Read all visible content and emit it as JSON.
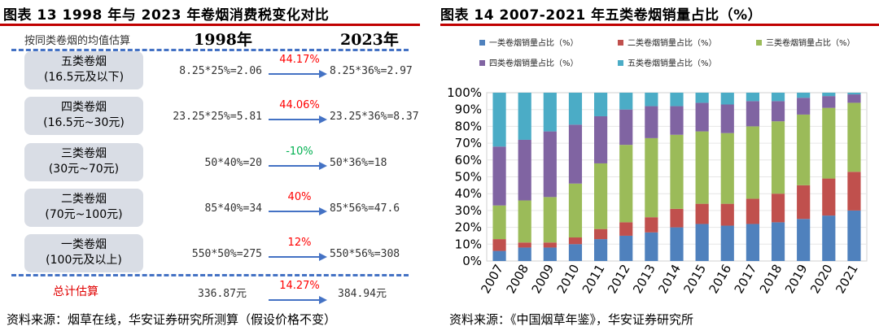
{
  "left": {
    "title": "图表 13 1998 年与 2023 年卷烟消费税变化对比",
    "header": {
      "label": "按同类卷烟的均值估算",
      "year1": "1998年",
      "year2": "2023年"
    },
    "rows": [
      {
        "cat_line1": "五类卷烟",
        "cat_line2": "(16.5元及以下)",
        "calc1998": "8.25*25%=2.06",
        "change": "44.17%",
        "change_color": "#ff0000",
        "calc2023": "8.25*36%=2.97"
      },
      {
        "cat_line1": "四类卷烟",
        "cat_line2": "(16.5元~30元)",
        "calc1998": "23.25*25%=5.81",
        "change": "44.06%",
        "change_color": "#ff0000",
        "calc2023": "23.25*36%=8.37"
      },
      {
        "cat_line1": "三类卷烟",
        "cat_line2": "(30元~70元)",
        "calc1998": "50*40%=20",
        "change": "-10%",
        "change_color": "#00b050",
        "calc2023": "50*36%=18"
      },
      {
        "cat_line1": "二类卷烟",
        "cat_line2": "(70元~100元)",
        "calc1998": "85*40%=34",
        "change": "40%",
        "change_color": "#ff0000",
        "calc2023": "85*56%=47.6"
      },
      {
        "cat_line1": "一类卷烟",
        "cat_line2": "(100元及以上)",
        "calc1998": "550*50%=275",
        "change": "12%",
        "change_color": "#ff0000",
        "calc2023": "550*56%=308"
      }
    ],
    "total": {
      "label": "总计估算",
      "calc1998": "336.87元",
      "change": "14.27%",
      "calc2023": "384.94元"
    },
    "source": "资料来源：烟草在线，华安证券研究所测算（假设价格不变）"
  },
  "chart_data": {
    "type": "bar",
    "stacked": true,
    "title": "图表 14 2007-2021 年五类卷烟销量占比（%）",
    "categories": [
      "2007",
      "2008",
      "2009",
      "2010",
      "2011",
      "2012",
      "2013",
      "2014",
      "2015",
      "2016",
      "2017",
      "2018",
      "2019",
      "2020",
      "2021"
    ],
    "y_ticks": [
      "0%",
      "10%",
      "20%",
      "30%",
      "40%",
      "50%",
      "60%",
      "70%",
      "80%",
      "90%",
      "100%"
    ],
    "ylim": [
      0,
      100
    ],
    "legend_position": "top",
    "series": [
      {
        "name": "一类卷烟销量占比（%）",
        "color": "#4f81bd",
        "values": [
          6,
          8,
          8,
          10,
          13,
          15,
          17,
          20,
          22,
          21,
          22,
          23,
          25,
          27,
          30
        ]
      },
      {
        "name": "二类卷烟销量占比（%）",
        "color": "#c0504d",
        "values": [
          7,
          3,
          3,
          4,
          6,
          8,
          9,
          11,
          12,
          13,
          15,
          17,
          20,
          22,
          23
        ]
      },
      {
        "name": "三类卷烟销量占比（%）",
        "color": "#9bbb59",
        "values": [
          20,
          25,
          27,
          32,
          39,
          46,
          47,
          44,
          43,
          42,
          43,
          43,
          42,
          42,
          41
        ]
      },
      {
        "name": "四类卷烟销量占比（%）",
        "color": "#8064a2",
        "values": [
          35,
          36,
          39,
          35,
          28,
          21,
          19,
          17,
          17,
          17,
          15,
          12,
          10,
          7,
          5
        ]
      },
      {
        "name": "五类卷烟销量占比（%）",
        "color": "#4bacc6",
        "values": [
          32,
          28,
          23,
          19,
          14,
          10,
          8,
          8,
          6,
          7,
          5,
          5,
          3,
          2,
          1
        ]
      }
    ],
    "source": "资料来源：《中国烟草年鉴》，华安证券研究所"
  }
}
